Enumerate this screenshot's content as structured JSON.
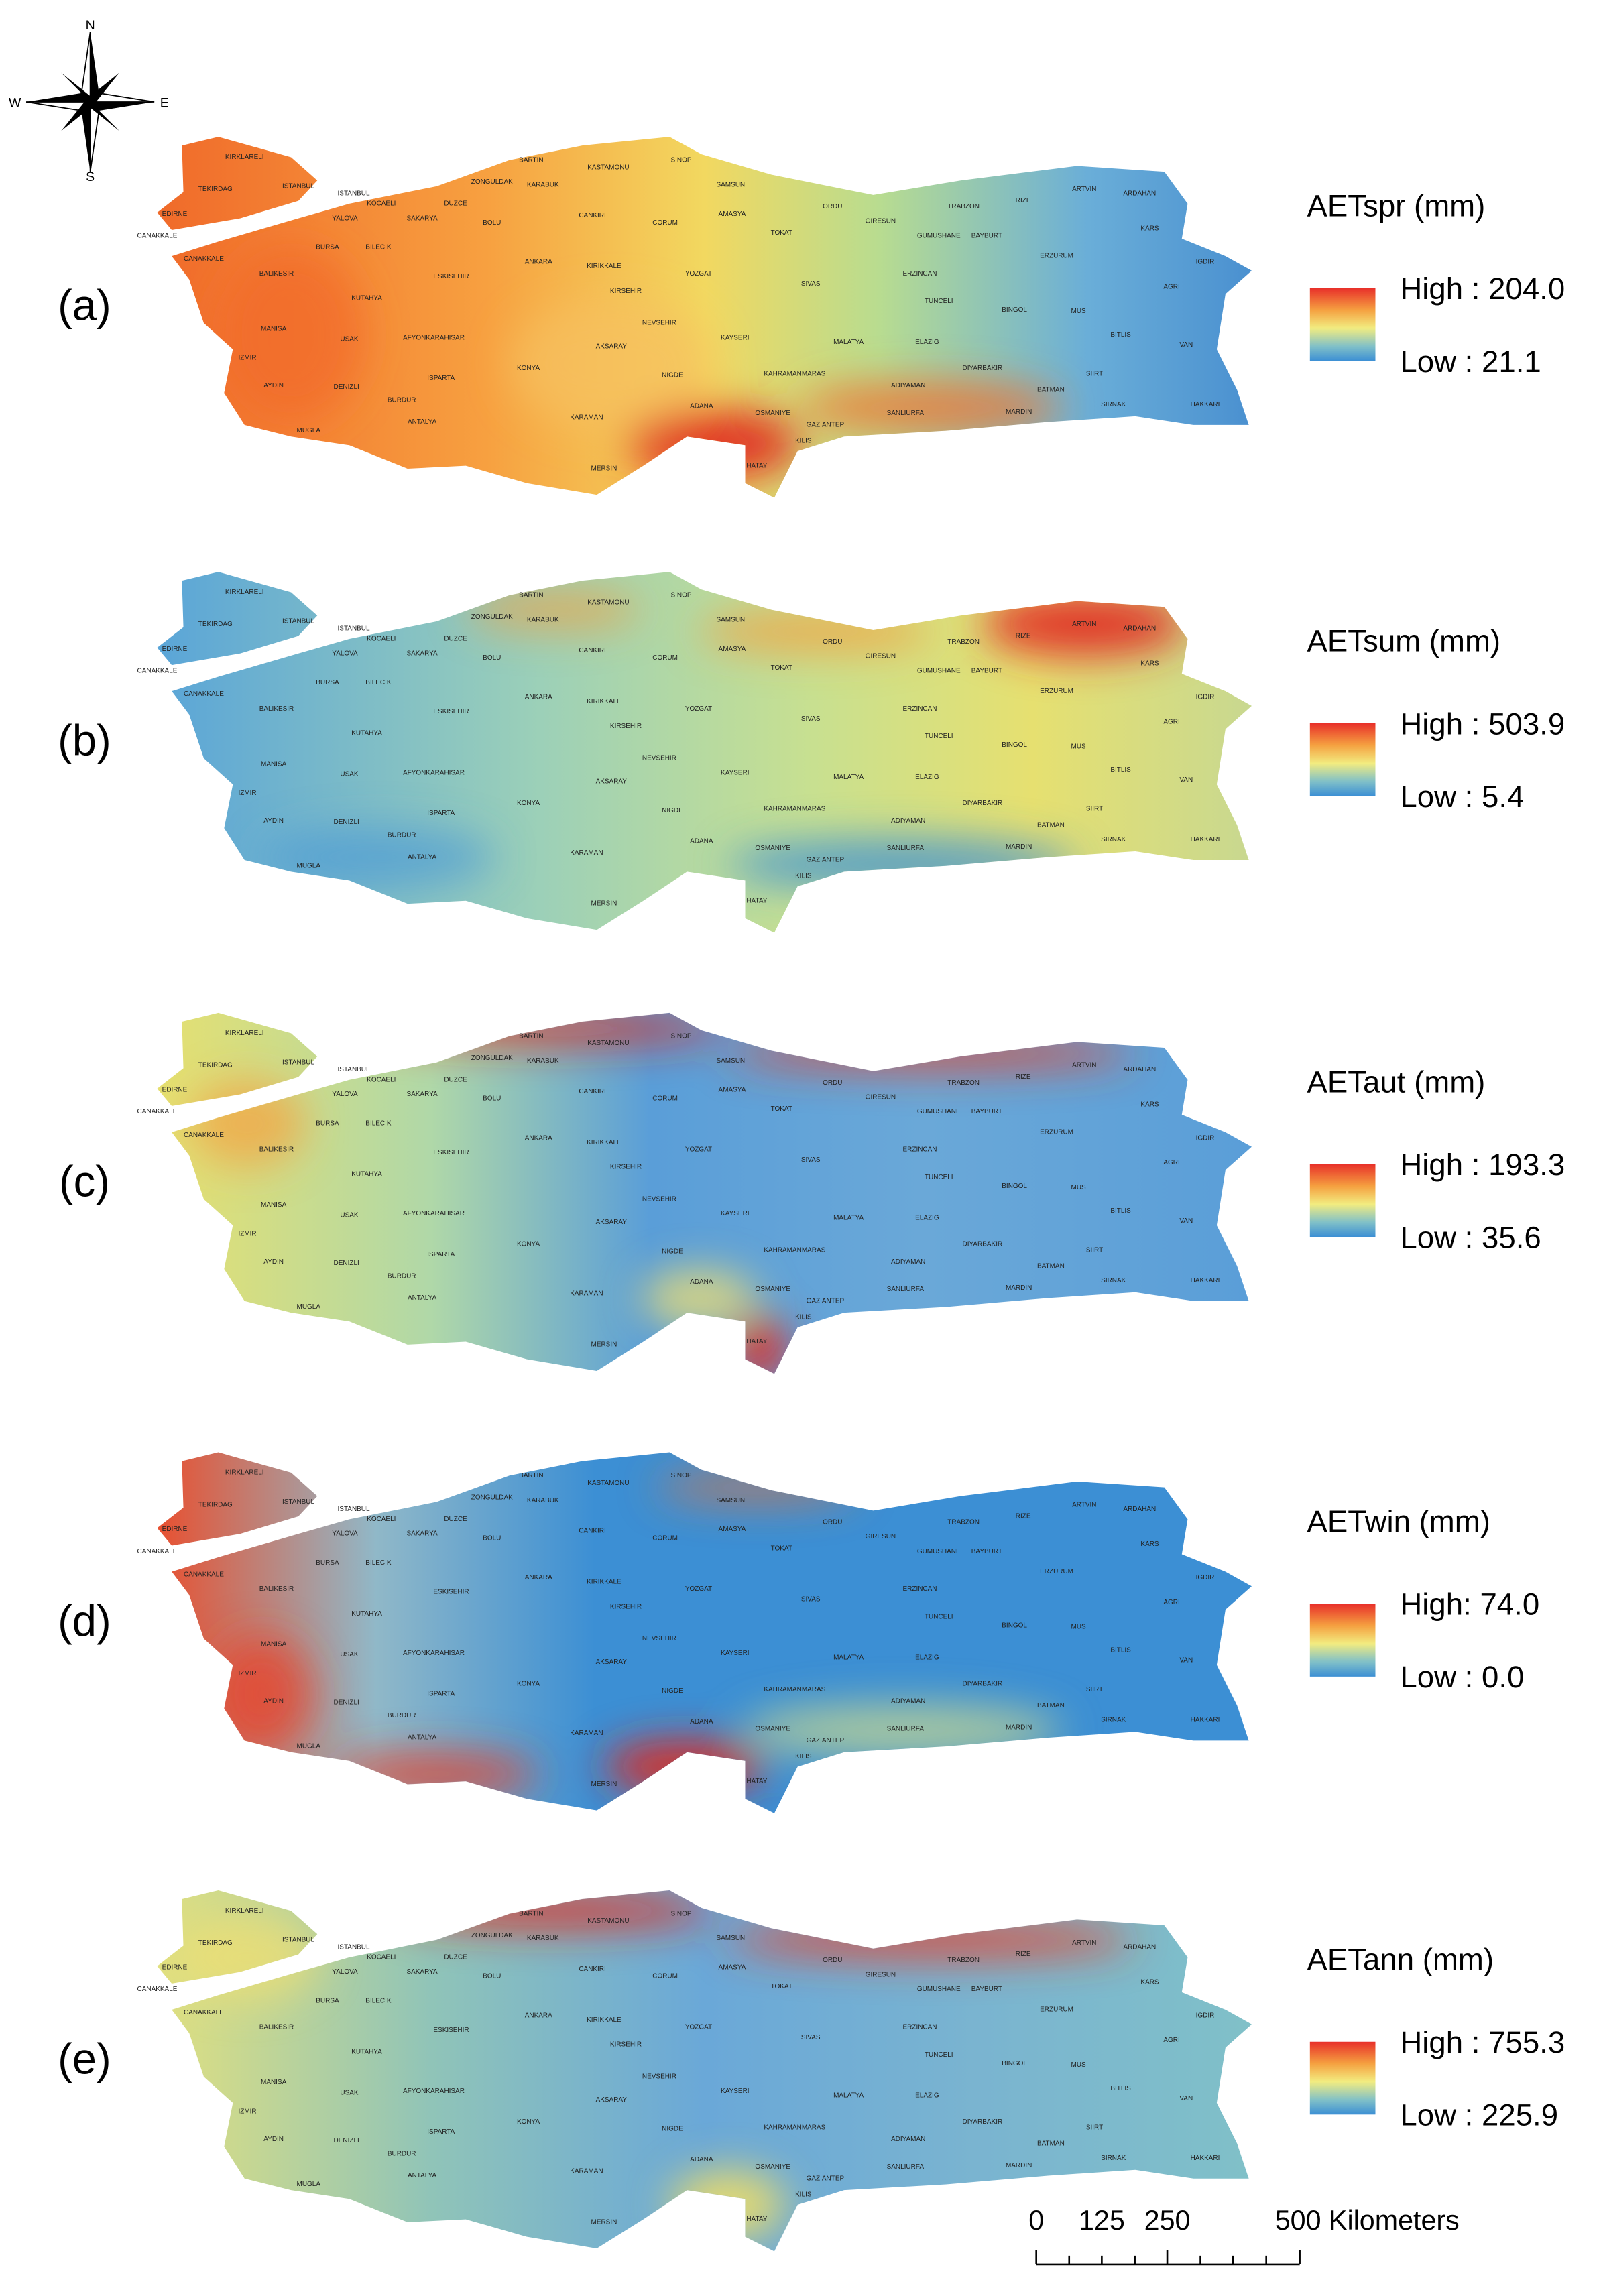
{
  "compass": {
    "n": "N",
    "s": "S",
    "e": "E",
    "w": "W"
  },
  "panels": [
    {
      "label": "(a)",
      "title": "AETspr (mm)",
      "high": "High : 204.0",
      "low": "Low : 21.1"
    },
    {
      "label": "(b)",
      "title": "AETsum (mm)",
      "high": "High : 503.9",
      "low": "Low : 5.4"
    },
    {
      "label": "(c)",
      "title": "AETaut (mm)",
      "high": "High : 193.3",
      "low": "Low : 35.6"
    },
    {
      "label": "(d)",
      "title": "AETwin (mm)",
      "high": "High: 74.0",
      "low": "Low : 0.0"
    },
    {
      "label": "(e)",
      "title": "AETann (mm)",
      "high": "High : 755.3",
      "low": "Low : 225.9"
    }
  ],
  "cities": [
    "KIRKLARELI",
    "TEKIRDAG",
    "ISTANBUL",
    "EDIRNE",
    "CANAKKALE",
    "CANAKKALE",
    "YALOVA",
    "ISTANBUL",
    "KOCAELI",
    "SAKARYA",
    "DUZCE",
    "ZONGULDAK",
    "BARTIN",
    "KARABUK",
    "KASTAMONU",
    "SINOP",
    "SAMSUN",
    "BOLU",
    "CANKIRI",
    "CORUM",
    "AMASYA",
    "TOKAT",
    "ORDU",
    "GIRESUN",
    "TRABZON",
    "RIZE",
    "ARTVIN",
    "ARDAHAN",
    "GUMUSHANE",
    "BAYBURT",
    "KARS",
    "IGDIR",
    "ERZURUM",
    "AGRI",
    "ERZINCAN",
    "BURSA",
    "BILECIK",
    "ESKISEHIR",
    "ANKARA",
    "KIRIKKALE",
    "YOZGAT",
    "SIVAS",
    "TUNCELI",
    "BINGOL",
    "MUS",
    "BALIKESIR",
    "KUTAHYA",
    "KIRSEHIR",
    "NEVSEHIR",
    "KAYSERI",
    "MALATYA",
    "ELAZIG",
    "BITLIS",
    "VAN",
    "MANISA",
    "USAK",
    "AFYONKARAHISAR",
    "AKSARAY",
    "IZMIR",
    "KONYA",
    "NIGDE",
    "KAHRAMANMARAS",
    "ADIYAMAN",
    "DIYARBAKIR",
    "SIIRT",
    "AYDIN",
    "DENIZLI",
    "ISPARTA",
    "BATMAN",
    "SIRNAK",
    "HAKKARI",
    "BURDUR",
    "ADANA",
    "OSMANIYE",
    "GAZIANTEP",
    "SANLIURFA",
    "MARDIN",
    "MUGLA",
    "ANTALYA",
    "KARAMAN",
    "KILIS",
    "MERSIN",
    "HATAY"
  ],
  "scale_bar": {
    "labels": [
      "0",
      "125",
      "250",
      "500 Kilometers"
    ]
  }
}
